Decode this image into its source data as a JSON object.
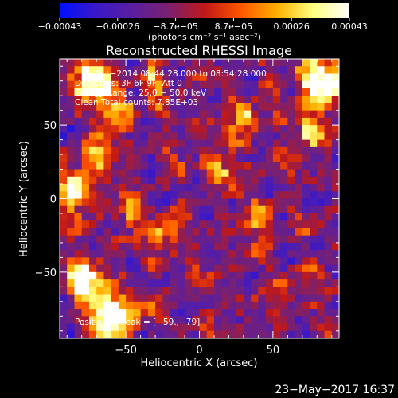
{
  "chart_data": {
    "type": "heatmap",
    "title": "Reconstructed RHESSI Image",
    "xlabel": "Heliocentric X (arcsec)",
    "ylabel": "Heliocentric Y (arcsec)",
    "xlim": [
      -95,
      95
    ],
    "ylim": [
      -95,
      95
    ],
    "xticks": [
      -50,
      0,
      50
    ],
    "yticks": [
      -50,
      0,
      50
    ],
    "xtick_labels": [
      "−50",
      "0",
      "50"
    ],
    "ytick_labels": [
      "−50",
      "0",
      "50"
    ],
    "grid": false,
    "colorbar": {
      "position": "top",
      "range": [
        -0.00043,
        0.00043
      ],
      "tick_labels": [
        "−0.00043",
        "−0.00026",
        "−8.7e−05",
        "8.7e−05",
        "0.00026",
        "0.00043"
      ],
      "units_label": "(photons cm⁻² s⁻¹ asec⁻²)",
      "colors": [
        "#0010ff",
        "#3a18c8",
        "#5a1fa0",
        "#7a2070",
        "#c01818",
        "#ff5500",
        "#ffb000",
        "#ffff80",
        "#ffffff"
      ]
    },
    "annotations": [
      "1−Oct−2014 08:44:28.000 to 08:54:28.000",
      "Detectors: 3F 6F 9F, Att 0",
      "Energy Range: 25.0 − 50.0 keV",
      "Clean     Total counts: 7.85E+03",
      "Position of Peak = [−59.,−79]"
    ],
    "peak_position": [
      -59,
      -79
    ],
    "grid_size": [
      38,
      38
    ],
    "image_values_note": ""
  },
  "footer": {
    "timestamp": "23−May−2017 16:37"
  }
}
